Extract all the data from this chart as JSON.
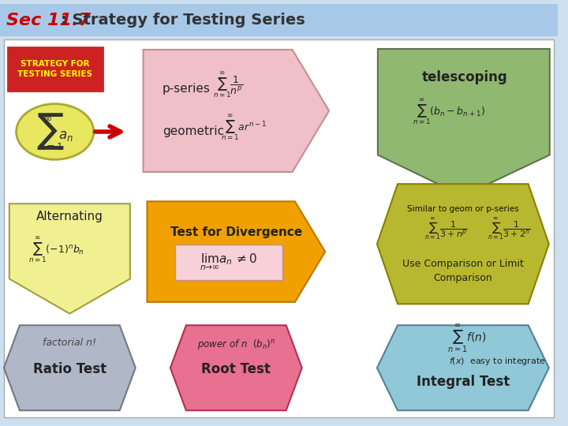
{
  "title_sec": "Sec 11.7",
  "title_main": ": Strategy for Testing Series",
  "bg_color": "#cce0f0",
  "header_bg": "#a8c8e8",
  "shapes": {
    "strategy_box": {
      "color": "#cc0000",
      "text_color": "#ffff00",
      "label": "STRATEGY FOR\nTESTING SERIES"
    },
    "sum_ellipse": {
      "color": "#e8e860",
      "border": "#aaa820"
    },
    "arrow_color": "#cc0000",
    "pseries_pent": {
      "color": "#f0c0c8",
      "border": "#c09090",
      "label_p": "p-series",
      "label_g": "geometric"
    },
    "telescoping_arrow": {
      "color": "#90b870",
      "border": "#607050",
      "label": "telescoping"
    },
    "alternating_arrow": {
      "color": "#f0f090",
      "border": "#a0a040",
      "label": "Alternating"
    },
    "divergence_pent": {
      "color": "#f0a000",
      "border": "#c07800",
      "label": "Test for Divergence"
    },
    "comparison_hex": {
      "color": "#b8b830",
      "border": "#888000",
      "label": "Use Comparison or Limit\nComparison",
      "small_label": "Similar to geom or p-series"
    },
    "ratio_hex": {
      "color": "#b0b8c8",
      "border": "#707888",
      "label": "Ratio Test",
      "small_label": "factorial n!"
    },
    "root_hex": {
      "color": "#e87090",
      "border": "#b03050",
      "label": "Root Test",
      "small_label": "power of n  (b_n)^n"
    },
    "integral_hex": {
      "color": "#90c8d8",
      "border": "#508098",
      "label": "Integral Test",
      "small_label_1": "f(x)  easy to integrate"
    }
  }
}
